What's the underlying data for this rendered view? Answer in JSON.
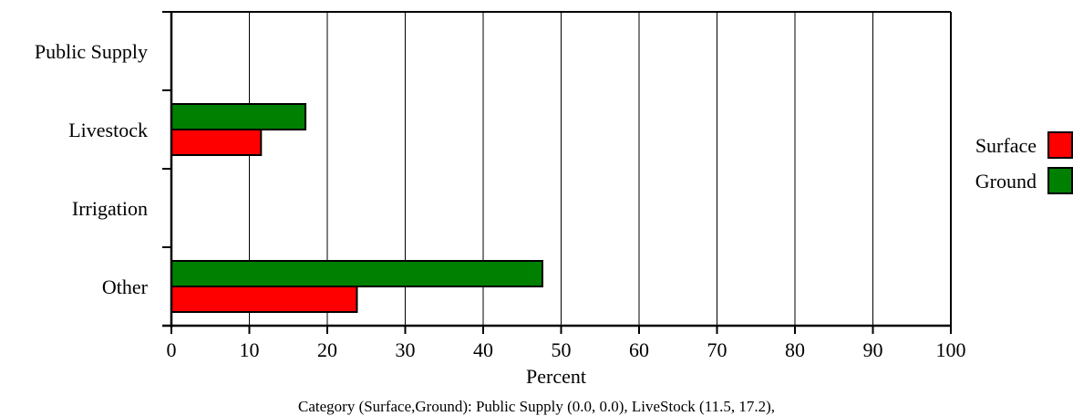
{
  "chart_data": {
    "type": "bar",
    "orientation": "horizontal",
    "categories": [
      "Public Supply",
      "Livestock",
      "Irrigation",
      "Other"
    ],
    "series": [
      {
        "name": "Surface",
        "color": "#ff0000",
        "values": [
          0.0,
          11.5,
          0.0,
          23.8
        ]
      },
      {
        "name": "Ground",
        "color": "#008000",
        "values": [
          0.0,
          17.2,
          0.0,
          47.6
        ]
      }
    ],
    "xlabel": "Percent",
    "xlim": [
      0,
      100
    ],
    "xticks": [
      "0",
      "10",
      "20",
      "30",
      "40",
      "50",
      "60",
      "70",
      "80",
      "90",
      "100"
    ],
    "grid": "vertical",
    "legend_position": "right",
    "caption": "Category (Surface,Ground): Public Supply (0.0, 0.0), LiveStock (11.5, 17.2),"
  }
}
